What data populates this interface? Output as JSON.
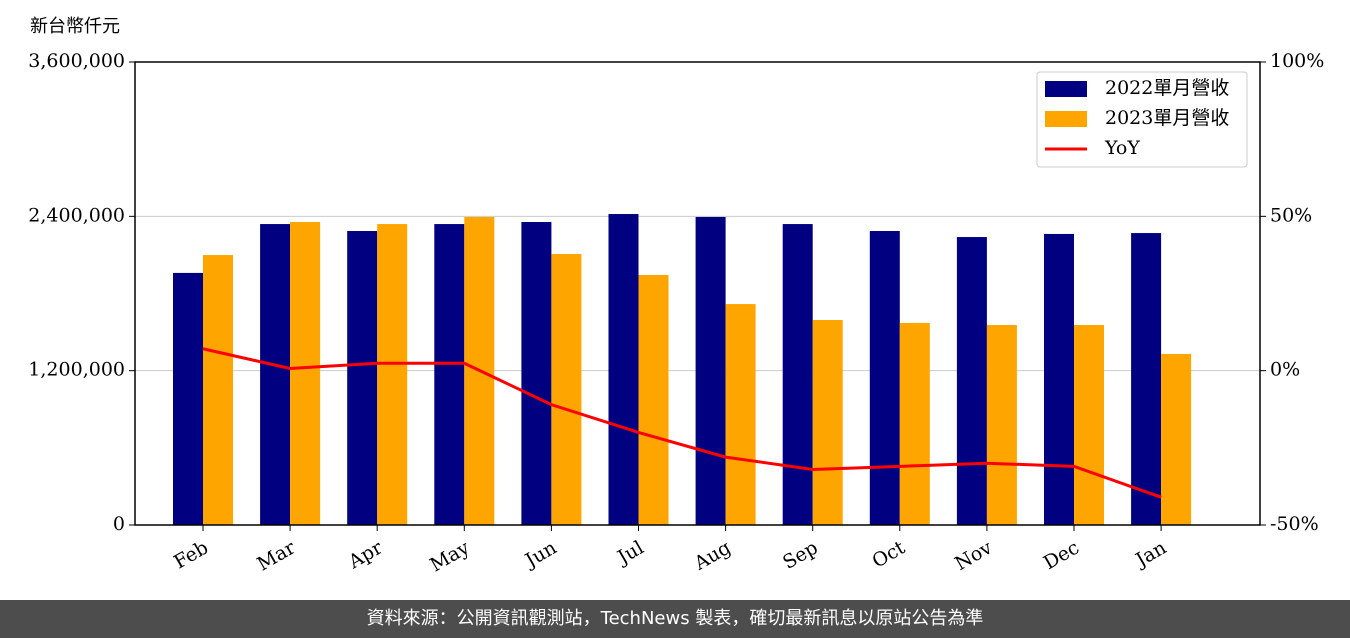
{
  "chart_data": {
    "type": "bar_line",
    "y_label": "新台幣仟元",
    "categories": [
      "Feb",
      "Mar",
      "Apr",
      "May",
      "Jun",
      "Jul",
      "Aug",
      "Sep",
      "Oct",
      "Nov",
      "Dec",
      "Jan"
    ],
    "series": [
      {
        "name": "2022單月營收",
        "color": "#000080",
        "values": [
          1960000,
          2340000,
          2286000,
          2340000,
          2356000,
          2418000,
          2395000,
          2340000,
          2286000,
          2239000,
          2263000,
          2270000
        ]
      },
      {
        "name": "2023單月營收",
        "color": "#ffa500",
        "values": [
          2099000,
          2356000,
          2340000,
          2395000,
          2107000,
          1944000,
          1718000,
          1594000,
          1571000,
          1555000,
          1555000,
          1330000
        ]
      },
      {
        "name": "YoY",
        "color": "#ff0000",
        "axis": "y2",
        "values": [
          7.1,
          0.7,
          2.4,
          2.4,
          -11,
          -20,
          -28,
          -32,
          -31,
          -30,
          -31,
          -41
        ]
      }
    ],
    "ylim": [
      0,
      3600000
    ],
    "yticks": [
      {
        "value": 0,
        "label": "0"
      },
      {
        "value": 1200000,
        "label": "1,200,000"
      },
      {
        "value": 2400000,
        "label": "2,400,000"
      },
      {
        "value": 3600000,
        "label": "3,600,000"
      }
    ],
    "y2lim": [
      -50,
      100
    ],
    "y2ticks": [
      {
        "value": -50,
        "label": "-50%"
      },
      {
        "value": 0,
        "label": "0%"
      },
      {
        "value": 50,
        "label": "50%"
      },
      {
        "value": 100,
        "label": "100%"
      }
    ],
    "grid": true,
    "legend": "upper right",
    "footer": "資料來源：公開資訊觀測站，TechNews 製表，確切最新訊息以原站公告為準"
  }
}
